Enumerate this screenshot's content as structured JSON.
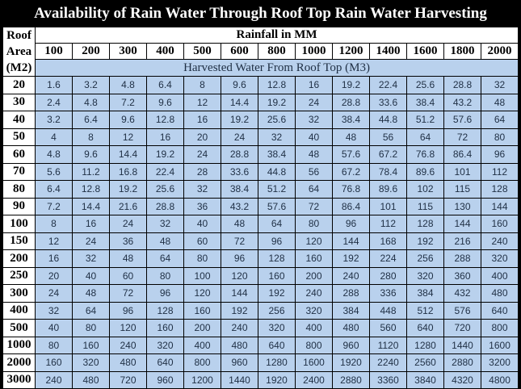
{
  "title": "Availability of Rain Water Through Roof Top Rain Water Harvesting",
  "corner_label": [
    "Roof",
    "Area",
    "(M2)"
  ],
  "rainfall_header": "Rainfall in MM",
  "rainfall_values": [
    "100",
    "200",
    "300",
    "400",
    "500",
    "600",
    "800",
    "1000",
    "1200",
    "1400",
    "1600",
    "1800",
    "2000"
  ],
  "subheader": "Harvested Water From Roof Top (M3)",
  "rows": [
    {
      "area": "20",
      "values": [
        "1.6",
        "3.2",
        "4.8",
        "6.4",
        "8",
        "9.6",
        "12.8",
        "16",
        "19.2",
        "22.4",
        "25.6",
        "28.8",
        "32"
      ]
    },
    {
      "area": "30",
      "values": [
        "2.4",
        "4.8",
        "7.2",
        "9.6",
        "12",
        "14.4",
        "19.2",
        "24",
        "28.8",
        "33.6",
        "38.4",
        "43.2",
        "48"
      ]
    },
    {
      "area": "40",
      "values": [
        "3.2",
        "6.4",
        "9.6",
        "12.8",
        "16",
        "19.2",
        "25.6",
        "32",
        "38.4",
        "44.8",
        "51.2",
        "57.6",
        "64"
      ]
    },
    {
      "area": "50",
      "values": [
        "4",
        "8",
        "12",
        "16",
        "20",
        "24",
        "32",
        "40",
        "48",
        "56",
        "64",
        "72",
        "80"
      ]
    },
    {
      "area": "60",
      "values": [
        "4.8",
        "9.6",
        "14.4",
        "19.2",
        "24",
        "28.8",
        "38.4",
        "48",
        "57.6",
        "67.2",
        "76.8",
        "86.4",
        "96"
      ]
    },
    {
      "area": "70",
      "values": [
        "5.6",
        "11.2",
        "16.8",
        "22.4",
        "28",
        "33.6",
        "44.8",
        "56",
        "67.2",
        "78.4",
        "89.6",
        "101",
        "112"
      ]
    },
    {
      "area": "80",
      "values": [
        "6.4",
        "12.8",
        "19.2",
        "25.6",
        "32",
        "38.4",
        "51.2",
        "64",
        "76.8",
        "89.6",
        "102",
        "115",
        "128"
      ]
    },
    {
      "area": "90",
      "values": [
        "7.2",
        "14.4",
        "21.6",
        "28.8",
        "36",
        "43.2",
        "57.6",
        "72",
        "86.4",
        "101",
        "115",
        "130",
        "144"
      ]
    },
    {
      "area": "100",
      "values": [
        "8",
        "16",
        "24",
        "32",
        "40",
        "48",
        "64",
        "80",
        "96",
        "112",
        "128",
        "144",
        "160"
      ]
    },
    {
      "area": "150",
      "values": [
        "12",
        "24",
        "36",
        "48",
        "60",
        "72",
        "96",
        "120",
        "144",
        "168",
        "192",
        "216",
        "240"
      ]
    },
    {
      "area": "200",
      "values": [
        "16",
        "32",
        "48",
        "64",
        "80",
        "96",
        "128",
        "160",
        "192",
        "224",
        "256",
        "288",
        "320"
      ]
    },
    {
      "area": "250",
      "values": [
        "20",
        "40",
        "60",
        "80",
        "100",
        "120",
        "160",
        "200",
        "240",
        "280",
        "320",
        "360",
        "400"
      ]
    },
    {
      "area": "300",
      "values": [
        "24",
        "48",
        "72",
        "96",
        "120",
        "144",
        "192",
        "240",
        "288",
        "336",
        "384",
        "432",
        "480"
      ]
    },
    {
      "area": "400",
      "values": [
        "32",
        "64",
        "96",
        "128",
        "160",
        "192",
        "256",
        "320",
        "384",
        "448",
        "512",
        "576",
        "640"
      ]
    },
    {
      "area": "500",
      "values": [
        "40",
        "80",
        "120",
        "160",
        "200",
        "240",
        "320",
        "400",
        "480",
        "560",
        "640",
        "720",
        "800"
      ]
    },
    {
      "area": "1000",
      "values": [
        "80",
        "160",
        "240",
        "320",
        "400",
        "480",
        "640",
        "800",
        "960",
        "1120",
        "1280",
        "1440",
        "1600"
      ]
    },
    {
      "area": "2000",
      "values": [
        "160",
        "320",
        "480",
        "640",
        "800",
        "960",
        "1280",
        "1600",
        "1920",
        "2240",
        "2560",
        "2880",
        "3200"
      ]
    },
    {
      "area": "3000",
      "values": [
        "240",
        "480",
        "720",
        "960",
        "1200",
        "1440",
        "1920",
        "2400",
        "2880",
        "3360",
        "3840",
        "4320",
        "4800"
      ]
    }
  ],
  "colors": {
    "background": "#000000",
    "cell_blue": "#b9d1ed",
    "header_white": "#ffffff",
    "cell_text": "#1f2f44"
  }
}
